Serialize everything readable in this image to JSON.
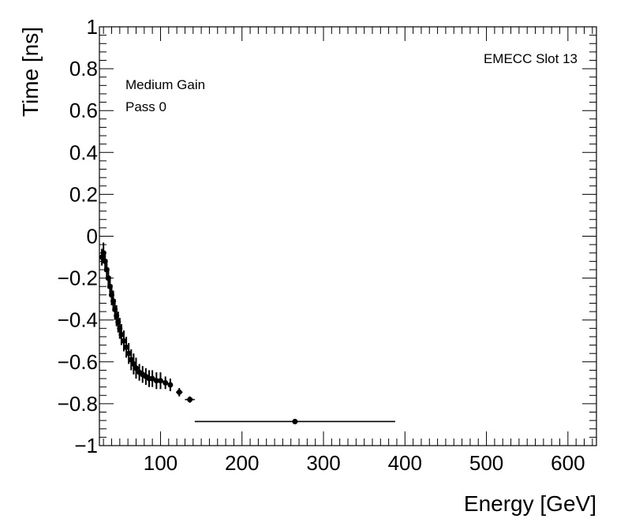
{
  "chart_data": {
    "type": "scatter",
    "title": "EMECC Slot 13",
    "annotations": [
      "Medium Gain",
      "Pass 0"
    ],
    "xlabel": "Energy [GeV]",
    "ylabel": "Time [ns]",
    "xlim": [
      25,
      635
    ],
    "ylim": [
      -1,
      1
    ],
    "x_ticks": [
      100,
      200,
      300,
      400,
      500,
      600
    ],
    "x_tick_labels": [
      "100",
      "200",
      "300",
      "400",
      "500",
      "600"
    ],
    "y_ticks": [
      -1,
      -0.8,
      -0.6,
      -0.4,
      -0.2,
      0,
      0.2,
      0.4,
      0.6,
      0.8,
      1
    ],
    "y_tick_labels": [
      "−1",
      "−0.8",
      "−0.6",
      "−0.4",
      "−0.2",
      "0",
      "0.2",
      "0.4",
      "0.6",
      "0.8",
      "1"
    ],
    "series": [
      {
        "name": "Pass 0",
        "points": [
          {
            "x": 28,
            "y": -0.1,
            "xerr": 2,
            "yerr": 0.04
          },
          {
            "x": 30,
            "y": -0.08,
            "xerr": 1,
            "yerr": 0.05
          },
          {
            "x": 32,
            "y": -0.12,
            "xerr": 1,
            "yerr": 0.05
          },
          {
            "x": 34,
            "y": -0.16,
            "xerr": 1,
            "yerr": 0.05
          },
          {
            "x": 36,
            "y": -0.2,
            "xerr": 1,
            "yerr": 0.05
          },
          {
            "x": 38,
            "y": -0.24,
            "xerr": 1,
            "yerr": 0.05
          },
          {
            "x": 40,
            "y": -0.28,
            "xerr": 1,
            "yerr": 0.05
          },
          {
            "x": 42,
            "y": -0.31,
            "xerr": 1,
            "yerr": 0.05
          },
          {
            "x": 44,
            "y": -0.35,
            "xerr": 1,
            "yerr": 0.05
          },
          {
            "x": 46,
            "y": -0.38,
            "xerr": 1,
            "yerr": 0.05
          },
          {
            "x": 48,
            "y": -0.41,
            "xerr": 1,
            "yerr": 0.05
          },
          {
            "x": 50,
            "y": -0.44,
            "xerr": 1,
            "yerr": 0.05
          },
          {
            "x": 52,
            "y": -0.47,
            "xerr": 1,
            "yerr": 0.05
          },
          {
            "x": 55,
            "y": -0.5,
            "xerr": 1.5,
            "yerr": 0.05
          },
          {
            "x": 58,
            "y": -0.53,
            "xerr": 1.5,
            "yerr": 0.05
          },
          {
            "x": 61,
            "y": -0.56,
            "xerr": 1.5,
            "yerr": 0.05
          },
          {
            "x": 64,
            "y": -0.59,
            "xerr": 1.5,
            "yerr": 0.05
          },
          {
            "x": 67,
            "y": -0.61,
            "xerr": 1.5,
            "yerr": 0.05
          },
          {
            "x": 70,
            "y": -0.63,
            "xerr": 1.5,
            "yerr": 0.05
          },
          {
            "x": 74,
            "y": -0.65,
            "xerr": 2,
            "yerr": 0.04
          },
          {
            "x": 78,
            "y": -0.66,
            "xerr": 2,
            "yerr": 0.04
          },
          {
            "x": 82,
            "y": -0.67,
            "xerr": 2,
            "yerr": 0.04
          },
          {
            "x": 86,
            "y": -0.68,
            "xerr": 2,
            "yerr": 0.04
          },
          {
            "x": 90,
            "y": -0.68,
            "xerr": 2,
            "yerr": 0.04
          },
          {
            "x": 95,
            "y": -0.69,
            "xerr": 2,
            "yerr": 0.04
          },
          {
            "x": 100,
            "y": -0.69,
            "xerr": 2,
            "yerr": 0.04
          },
          {
            "x": 106,
            "y": -0.7,
            "xerr": 3,
            "yerr": 0.03
          },
          {
            "x": 112,
            "y": -0.71,
            "xerr": 3,
            "yerr": 0.03
          },
          {
            "x": 123,
            "y": -0.745,
            "xerr": 4,
            "yerr": 0.02
          },
          {
            "x": 136,
            "y": -0.78,
            "xerr": 6,
            "yerr": 0.015
          },
          {
            "x": 265,
            "y": -0.885,
            "xerr": 123,
            "yerr": 0.01
          }
        ]
      }
    ]
  }
}
